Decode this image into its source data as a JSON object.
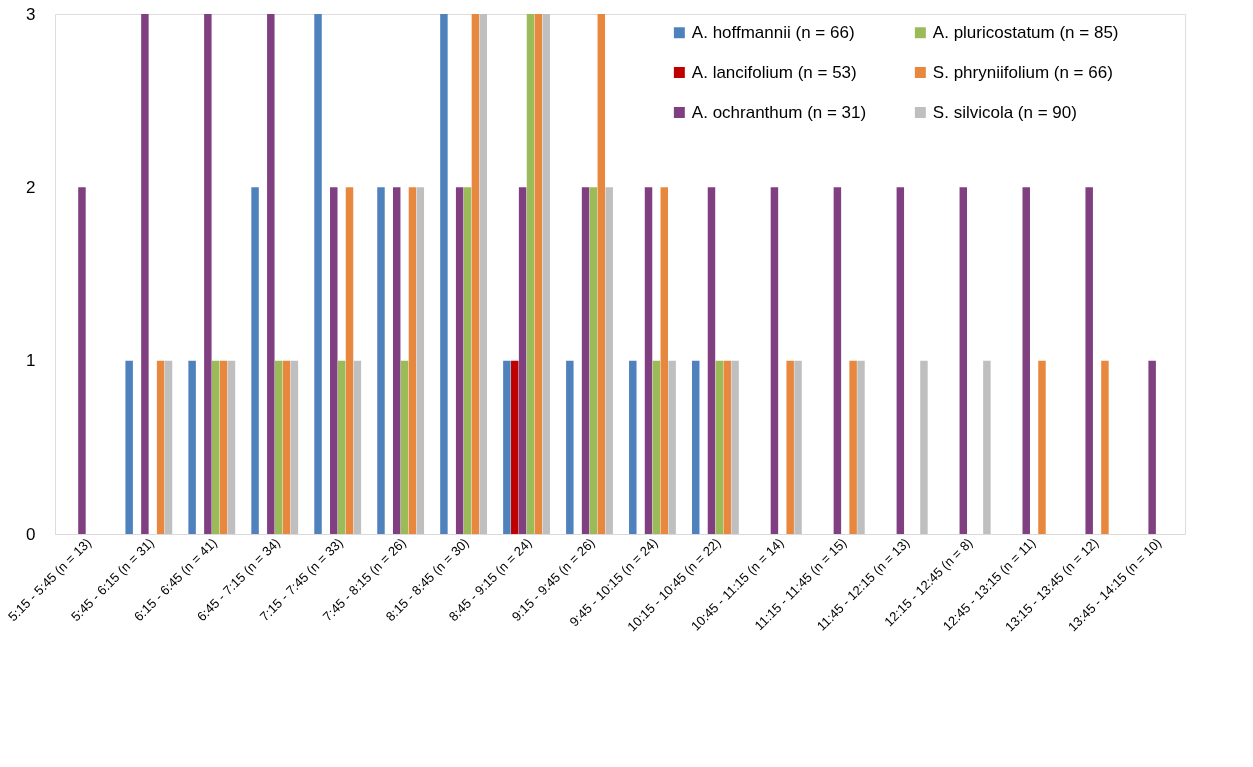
{
  "chart_data": {
    "type": "bar",
    "categories": [
      "5:15 - 5:45 (n = 13)",
      "5:45 - 6:15 (n = 31)",
      "6:15 - 6:45 (n = 41)",
      "6:45 - 7:15 (n = 34)",
      "7:15 - 7:45 (n = 33)",
      "7:45 - 8:15 (n = 26)",
      "8:15 - 8:45 (n = 30)",
      "8:45 - 9:15 (n = 24)",
      "9:15 - 9:45 (n = 26)",
      "9:45 - 10:15 (n = 24)",
      "10:15 - 10:45 (n = 22)",
      "10:45 - 11:15 (n = 14)",
      "11:15 - 11:45 (n = 15)",
      "11:45 - 12:15 (n = 13)",
      "12:15 - 12:45 (n = 8)",
      "12:45 - 13:15 (n = 11)",
      "13:15 - 13:45 (n = 12)",
      "13:45 - 14:15 (n = 10)"
    ],
    "series": [
      {
        "name": "A. hoffmannii (n = 66)",
        "color": "#4f81bd",
        "values": [
          0,
          1,
          1,
          2,
          3,
          2,
          3,
          1,
          1,
          1,
          1,
          0,
          0,
          0,
          0,
          0,
          0,
          0
        ]
      },
      {
        "name": "A. lancifolium (n = 53)",
        "color": "#c00000",
        "values": [
          0,
          0,
          0,
          0,
          0,
          0,
          0,
          1,
          0,
          0,
          0,
          0,
          0,
          0,
          0,
          0,
          0,
          0
        ]
      },
      {
        "name": "A. ochranthum (n = 31)",
        "color": "#7f3f80",
        "values": [
          2,
          3,
          3,
          3,
          2,
          2,
          2,
          2,
          2,
          2,
          2,
          2,
          2,
          2,
          2,
          2,
          2,
          1
        ]
      },
      {
        "name": "A. pluricostatum (n = 85)",
        "color": "#9bbb59",
        "values": [
          0,
          0,
          1,
          1,
          1,
          1,
          2,
          3,
          2,
          1,
          1,
          0,
          0,
          0,
          0,
          0,
          0,
          0
        ]
      },
      {
        "name": "S. phryniifolium (n = 66)",
        "color": "#e8883e",
        "values": [
          0,
          1,
          1,
          1,
          2,
          2,
          3,
          3,
          3,
          2,
          1,
          1,
          1,
          0,
          0,
          1,
          1,
          0
        ]
      },
      {
        "name": "S. silvicola (n = 90)",
        "color": "#bfbfbf",
        "values": [
          0,
          1,
          1,
          1,
          1,
          2,
          3,
          3,
          2,
          1,
          1,
          1,
          1,
          1,
          1,
          0,
          0,
          0
        ]
      }
    ],
    "ylim": [
      0,
      3
    ],
    "yticks": [
      0,
      1,
      2,
      3
    ],
    "grid": false,
    "legend": "top right"
  }
}
